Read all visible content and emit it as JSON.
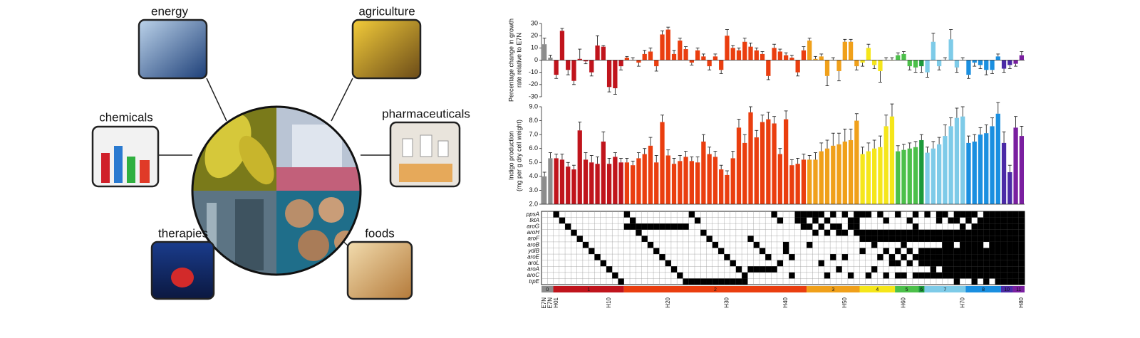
{
  "diagram": {
    "labels": [
      "energy",
      "agriculture",
      "chemicals",
      "pharmaceuticals",
      "therapies",
      "foods"
    ]
  },
  "chart_data": [
    {
      "type": "bar",
      "ylabel": [
        "Percentage change in growth",
        "rate relative to E7N"
      ],
      "ylim": [
        -30,
        30
      ],
      "yticks": [
        -30,
        -20,
        -10,
        0,
        10,
        20,
        30
      ],
      "values": [
        13,
        2,
        -12,
        24,
        -8,
        -17,
        1,
        -1,
        -10,
        12,
        11,
        -22,
        -23,
        -5,
        2,
        0,
        -2,
        5,
        7,
        -5,
        21,
        25,
        5,
        16,
        9,
        -2,
        8,
        3,
        -5,
        3,
        -8,
        20,
        10,
        8,
        15,
        11,
        8,
        5,
        -13,
        10,
        7,
        4,
        2,
        -10,
        8,
        16,
        1,
        3,
        -13,
        0,
        -9,
        15,
        15,
        -5,
        -2,
        10,
        -4,
        -9,
        0,
        0,
        4,
        5,
        -5,
        -6,
        -5,
        -10,
        15,
        -5,
        0,
        17,
        -6,
        0,
        -12,
        -2,
        -4,
        -8,
        -8,
        3,
        -7,
        -4,
        -3,
        4
      ],
      "errors": [
        5,
        2,
        3,
        2,
        4,
        3,
        8,
        2,
        3,
        8,
        1,
        4,
        5,
        3,
        1,
        2,
        3,
        3,
        3,
        4,
        3,
        2,
        3,
        2,
        2,
        2,
        2,
        2,
        3,
        2,
        3,
        5,
        2,
        2,
        3,
        3,
        2,
        2,
        3,
        3,
        2,
        2,
        2,
        3,
        3,
        2,
        2,
        2,
        8,
        2,
        8,
        2,
        2,
        3,
        3,
        3,
        3,
        9,
        2,
        2,
        2,
        2,
        3,
        4,
        5,
        4,
        7,
        3,
        2,
        8,
        4,
        2,
        3,
        3,
        3,
        4,
        3,
        2,
        3,
        3,
        2,
        3
      ]
    },
    {
      "type": "bar",
      "ylabel": [
        "Indigo production",
        "(mg per g dry cell weight)"
      ],
      "ylim": [
        2,
        9
      ],
      "yticks": [
        {
          "value": 2,
          "label": "2.0"
        },
        {
          "value": 3,
          "label": "3.0"
        },
        {
          "value": 4,
          "label": "4.0"
        },
        {
          "value": 5,
          "label": "5.0"
        },
        {
          "value": 6,
          "label": "6.0"
        },
        {
          "value": 7,
          "label": "7.0"
        },
        {
          "value": 8,
          "label": "8.0"
        },
        {
          "value": 9,
          "label": "9.0"
        }
      ],
      "values": [
        4.0,
        5.3,
        5.3,
        5.2,
        4.7,
        4.5,
        7.3,
        5.2,
        5.0,
        4.9,
        6.5,
        4.9,
        5.4,
        5.0,
        5.0,
        4.8,
        5.3,
        5.6,
        6.2,
        5.0,
        7.9,
        5.5,
        4.9,
        5.1,
        5.4,
        5.1,
        5.0,
        6.5,
        5.6,
        5.4,
        4.5,
        4.1,
        5.3,
        7.5,
        6.4,
        8.6,
        6.8,
        7.9,
        8.1,
        7.8,
        5.6,
        8.1,
        4.8,
        4.9,
        5.2,
        5.2,
        5.2,
        5.8,
        6.0,
        6.2,
        6.3,
        6.5,
        6.6,
        8.0,
        5.6,
        5.8,
        6.0,
        6.1,
        7.6,
        8.3,
        5.8,
        5.9,
        6.0,
        6.1,
        6.6,
        5.7,
        6.0,
        6.3,
        6.9,
        7.6,
        8.2,
        8.3,
        6.4,
        6.5,
        7.0,
        7.1,
        7.6,
        8.5,
        6.4,
        4.3,
        7.5,
        6.9
      ],
      "errors": [
        0.3,
        0.4,
        0.3,
        0.4,
        0.3,
        0.3,
        0.6,
        0.5,
        0.5,
        0.5,
        0.7,
        0.4,
        0.3,
        0.3,
        0.3,
        0.3,
        0.4,
        0.4,
        0.6,
        0.5,
        0.5,
        0.4,
        0.4,
        0.4,
        0.4,
        0.3,
        0.4,
        0.5,
        0.5,
        0.4,
        0.3,
        0.3,
        0.5,
        0.6,
        0.6,
        0.4,
        0.5,
        0.5,
        0.5,
        0.5,
        0.4,
        0.6,
        0.4,
        0.4,
        0.4,
        0.3,
        0.5,
        0.6,
        0.6,
        0.9,
        0.8,
        0.9,
        0.8,
        0.5,
        0.5,
        0.6,
        0.6,
        0.8,
        0.8,
        0.9,
        0.4,
        0.4,
        0.4,
        0.4,
        0.4,
        0.4,
        0.5,
        0.5,
        0.8,
        0.6,
        0.7,
        0.7,
        0.5,
        0.5,
        0.5,
        0.6,
        0.6,
        0.8,
        0.8,
        0.5,
        0.8,
        0.7
      ]
    },
    {
      "type": "matrix",
      "rows": [
        "ppsA",
        "tktA",
        "aroG",
        "aroH",
        "aroF",
        "aroB",
        "ydiB",
        "aroE",
        "aroL",
        "aroA",
        "aroC",
        "trpE"
      ],
      "columns": [
        [],
        [],
        [
          0
        ],
        [
          1
        ],
        [
          2
        ],
        [
          3
        ],
        [
          4
        ],
        [
          5
        ],
        [
          6
        ],
        [
          7
        ],
        [
          8
        ],
        [
          9
        ],
        [
          10
        ],
        [
          11
        ],
        [
          0,
          2
        ],
        [
          1,
          2
        ],
        [
          2,
          3
        ],
        [
          2,
          4
        ],
        [
          2,
          5
        ],
        [
          2,
          6
        ],
        [
          2,
          7
        ],
        [
          2,
          8
        ],
        [
          2,
          9
        ],
        [
          2,
          10
        ],
        [
          2,
          11
        ],
        [
          0,
          11
        ],
        [
          1,
          11
        ],
        [
          3,
          11
        ],
        [
          4,
          11
        ],
        [
          5,
          11
        ],
        [
          6,
          11
        ],
        [
          7,
          11
        ],
        [
          8,
          11
        ],
        [
          9,
          11
        ],
        [
          10,
          11
        ],
        [
          4,
          9
        ],
        [
          5,
          9
        ],
        [
          6,
          9
        ],
        [
          7,
          9
        ],
        [
          0,
          9
        ],
        [
          1,
          8
        ],
        [
          5,
          6
        ],
        [
          7,
          10
        ],
        [
          0,
          1
        ],
        [
          0,
          1,
          2
        ],
        [
          0,
          2,
          5
        ],
        [
          0,
          1,
          3
        ],
        [
          0,
          2,
          8
        ],
        [
          1,
          3,
          10
        ],
        [
          0,
          2,
          7
        ],
        [
          2,
          3,
          9
        ],
        [
          0,
          3,
          7
        ],
        [
          1,
          2,
          10
        ],
        [
          0,
          1,
          2,
          3
        ],
        [
          0,
          3,
          4,
          6
        ],
        [
          0,
          3,
          4,
          10
        ],
        [
          3,
          4,
          5,
          9
        ],
        [
          0,
          3,
          4,
          7
        ],
        [
          1,
          3,
          4,
          6,
          10
        ],
        [
          3,
          4,
          7,
          8
        ],
        [
          0,
          3,
          4,
          6,
          8,
          10
        ],
        [
          3,
          4,
          5,
          7,
          10
        ],
        [
          1,
          3,
          4,
          6,
          8
        ],
        [
          0,
          2,
          3,
          4,
          7,
          10
        ],
        [
          3,
          4,
          6,
          7,
          8,
          10
        ],
        [
          0,
          3,
          4,
          6,
          7,
          8,
          10
        ],
        [
          3,
          4,
          6,
          7,
          8,
          9,
          10
        ],
        [
          0,
          1,
          3,
          4,
          6,
          7,
          8,
          10
        ],
        [
          0,
          3,
          4,
          5,
          6,
          7,
          8,
          9,
          10
        ],
        [
          1,
          3,
          4,
          5,
          6,
          7,
          8,
          9,
          10
        ],
        [
          0,
          1,
          3,
          4,
          6,
          7,
          8,
          9,
          10,
          11
        ],
        [
          0,
          2,
          3,
          4,
          5,
          6,
          7,
          8,
          9,
          10
        ],
        [
          0,
          1,
          3,
          4,
          5,
          6,
          7,
          8,
          9,
          10
        ],
        [
          0,
          2,
          3,
          4,
          5,
          6,
          7,
          8,
          9,
          10,
          11
        ],
        [
          1,
          2,
          3,
          4,
          5,
          6,
          7,
          8,
          9,
          10
        ],
        [
          0,
          1,
          2,
          3,
          4,
          6,
          7,
          8,
          9,
          10,
          11
        ],
        [
          0,
          1,
          2,
          3,
          4,
          5,
          6,
          7,
          8,
          9,
          10
        ],
        [
          0,
          1,
          2,
          3,
          4,
          5,
          6,
          7,
          8,
          9,
          10,
          11
        ],
        [
          0,
          1,
          2,
          3,
          4,
          5,
          6,
          7,
          8,
          9,
          10,
          11
        ],
        [
          0,
          1,
          2,
          3,
          4,
          5,
          6,
          7,
          8,
          9,
          10,
          11
        ],
        [
          0,
          1,
          2,
          3,
          4,
          5,
          6,
          7,
          8,
          9,
          10,
          11
        ],
        [
          0,
          1,
          2,
          3,
          4,
          5,
          6,
          7,
          8,
          9,
          10,
          11
        ]
      ]
    },
    {
      "type": "strip",
      "groups": [
        {
          "name": "0",
          "color": "#8c8c8c",
          "size": 2
        },
        {
          "name": "1",
          "color": "#c0141c",
          "size": 12
        },
        {
          "name": "2",
          "color": "#ea3e0f",
          "size": 31
        },
        {
          "name": "3",
          "color": "#f0a01a",
          "size": 9
        },
        {
          "name": "4",
          "color": "#f5e61a",
          "size": 6
        },
        {
          "name": "5",
          "color": "#4cc04a",
          "size": 4
        },
        {
          "name": "6",
          "color": "#1c9a3a",
          "size": 1
        },
        {
          "name": "7",
          "color": "#7ecbe8",
          "size": 7
        },
        {
          "name": "8",
          "color": "#1a8fe0",
          "size": 6
        },
        {
          "name": "10",
          "color": "#4b2aa6",
          "size": 2
        },
        {
          "name": "11",
          "color": "#7a1fa0",
          "size": 2
        }
      ],
      "categories": [
        "E7N",
        "E7N",
        "H01",
        null,
        null,
        null,
        null,
        null,
        null,
        null,
        null,
        "H10",
        null,
        null,
        null,
        null,
        null,
        null,
        null,
        null,
        null,
        "H20",
        null,
        null,
        null,
        null,
        null,
        null,
        null,
        null,
        null,
        "H30",
        null,
        null,
        null,
        null,
        null,
        null,
        null,
        null,
        null,
        "H40",
        null,
        null,
        null,
        null,
        null,
        null,
        null,
        null,
        null,
        "H50",
        null,
        null,
        null,
        null,
        null,
        null,
        null,
        null,
        null,
        "H60",
        null,
        null,
        null,
        null,
        null,
        null,
        null,
        null,
        null,
        "H70",
        null,
        null,
        null,
        null,
        null,
        null,
        null,
        null,
        null,
        "H80"
      ]
    }
  ]
}
